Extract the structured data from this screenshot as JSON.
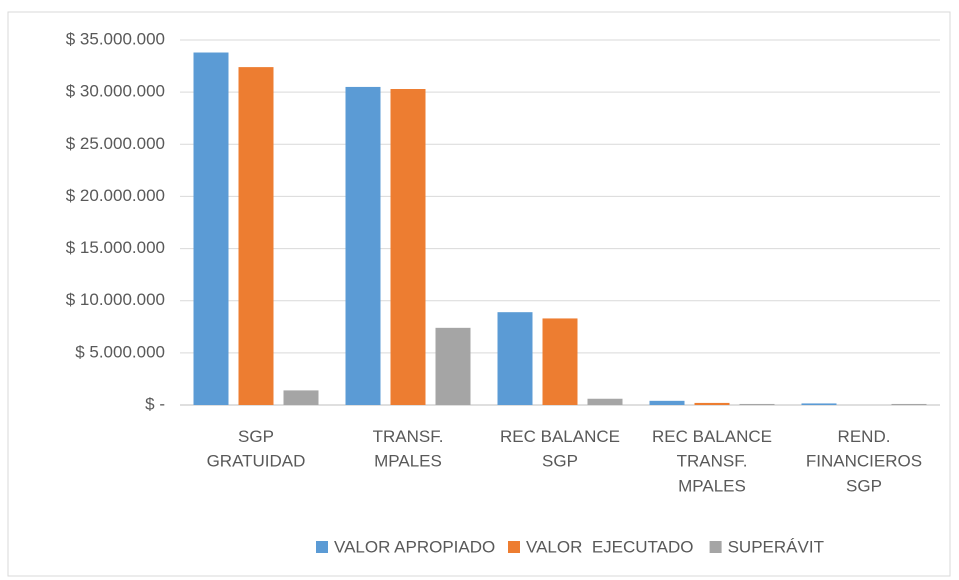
{
  "chart_data": {
    "type": "bar",
    "categories": [
      "SGP\nGRATUIDAD",
      "TRANSF.\nMPALES",
      "REC BALANCE\nSGP",
      "REC BALANCE\nTRANSF.\nMPALES",
      "REND.\nFINANCIEROS\nSGP"
    ],
    "series": [
      {
        "name": "VALOR APROPIADO",
        "color": "#5b9bd5",
        "values": [
          33800000,
          30500000,
          8900000,
          400000,
          150000
        ]
      },
      {
        "name": "VALOR  EJECUTADO",
        "color": "#ed7d31",
        "values": [
          32400000,
          30300000,
          8300000,
          200000,
          0
        ]
      },
      {
        "name": "SUPERÁVIT",
        "color": "#a5a5a5",
        "values": [
          1400000,
          7400000,
          600000,
          100000,
          100000
        ]
      }
    ],
    "ylim": [
      0,
      35000000
    ],
    "yticks": [
      {
        "value": 0,
        "label": "$ -"
      },
      {
        "value": 5000000,
        "label": "$ 5.000.000"
      },
      {
        "value": 10000000,
        "label": "$ 10.000.000"
      },
      {
        "value": 15000000,
        "label": "$ 15.000.000"
      },
      {
        "value": 20000000,
        "label": "$ 20.000.000"
      },
      {
        "value": 25000000,
        "label": "$ 25.000.000"
      },
      {
        "value": 30000000,
        "label": "$ 30.000.000"
      },
      {
        "value": 35000000,
        "label": "$ 35.000.000"
      }
    ],
    "grid": true
  }
}
